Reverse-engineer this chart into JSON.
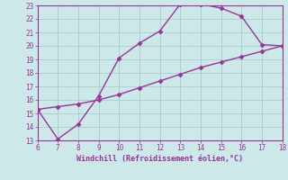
{
  "line1_x": [
    6,
    7,
    8,
    9,
    10,
    11,
    12,
    13,
    14,
    15,
    16,
    17,
    18
  ],
  "line1_y": [
    15.3,
    13.1,
    14.2,
    16.3,
    19.1,
    20.2,
    21.1,
    23.1,
    23.1,
    22.8,
    22.2,
    20.1,
    20.0
  ],
  "line2_x": [
    6,
    7,
    8,
    9,
    10,
    11,
    12,
    13,
    14,
    15,
    16,
    17,
    18
  ],
  "line2_y": [
    15.3,
    15.5,
    15.7,
    16.0,
    16.4,
    16.9,
    17.4,
    17.9,
    18.4,
    18.8,
    19.2,
    19.6,
    20.0
  ],
  "line_color": "#993399",
  "bg_color": "#cce8e8",
  "grid_color": "#aacccc",
  "xlabel": "Windchill (Refroidissement éolien,°C)",
  "xlim": [
    6,
    18
  ],
  "ylim": [
    13,
    23
  ],
  "xticks": [
    6,
    7,
    8,
    9,
    10,
    11,
    12,
    13,
    14,
    15,
    16,
    17,
    18
  ],
  "yticks": [
    13,
    14,
    15,
    16,
    17,
    18,
    19,
    20,
    21,
    22,
    23
  ],
  "tick_color": "#993399",
  "label_color": "#993399",
  "marker": "D",
  "markersize": 2.5,
  "linewidth": 1.0
}
